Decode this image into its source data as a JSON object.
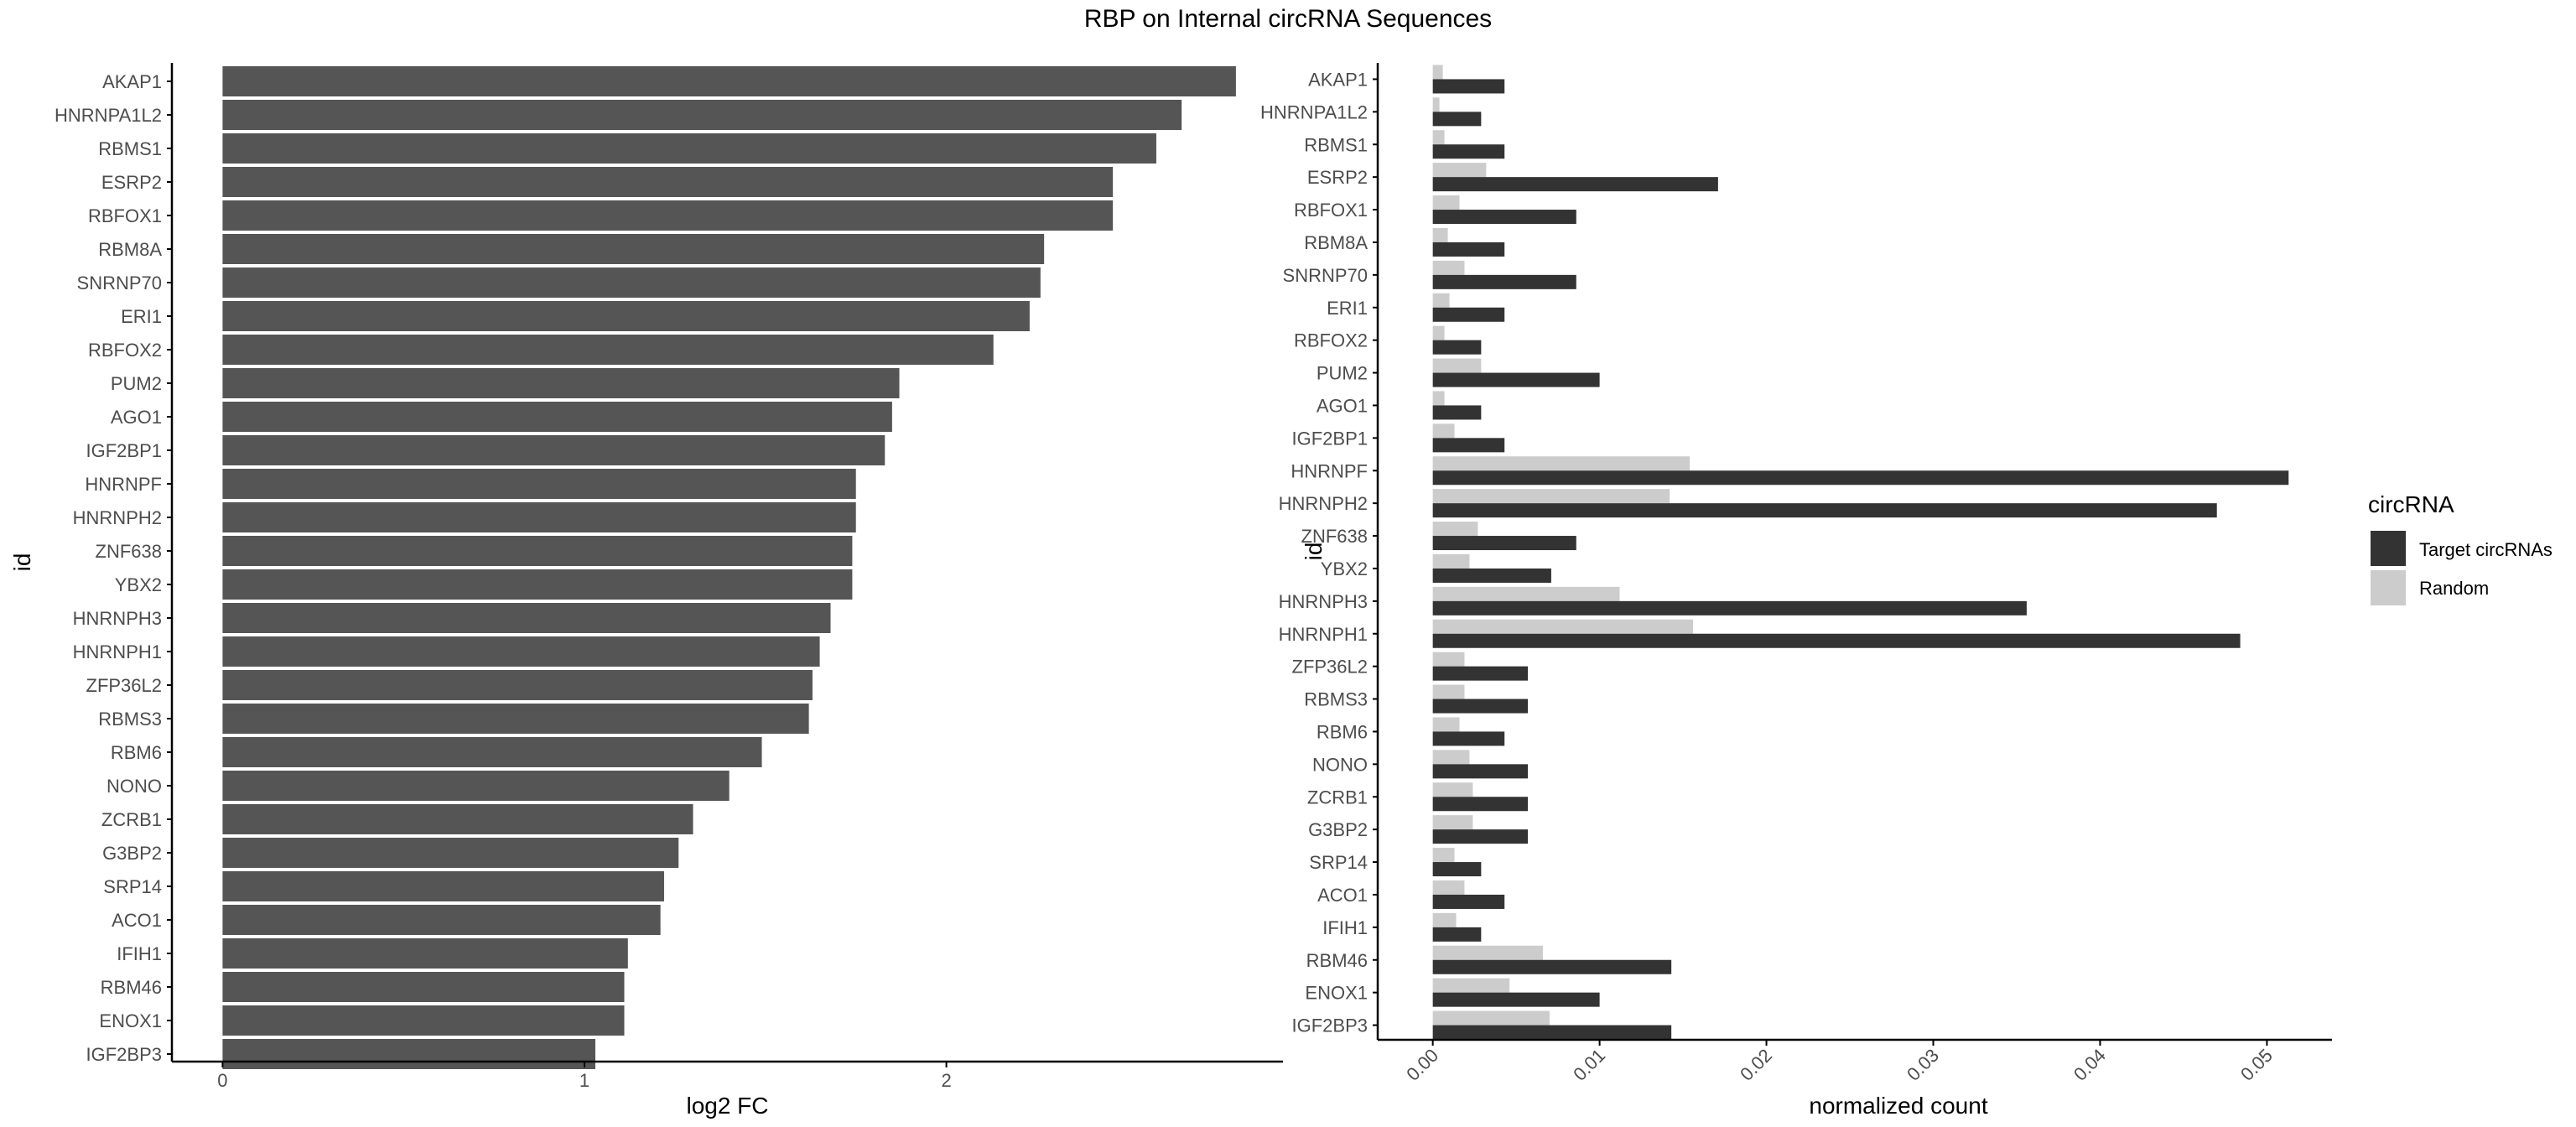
{
  "title": "RBP on Internal circRNA Sequences",
  "colors": {
    "target": "#333333",
    "random": "#cccccc",
    "bar": "#555555",
    "axis": "#000000"
  },
  "chart_data": [
    {
      "type": "bar",
      "orientation": "horizontal",
      "xlabel": "log2 FC",
      "ylabel": "id",
      "xlim": [
        -0.14,
        2.93
      ],
      "xticks": [
        0,
        1,
        2
      ],
      "grid": false,
      "categories": [
        "AKAP1",
        "HNRNPA1L2",
        "RBMS1",
        "ESRP2",
        "RBFOX1",
        "RBM8A",
        "SNRNP70",
        "ERI1",
        "RBFOX2",
        "PUM2",
        "AGO1",
        "IGF2BP1",
        "HNRNPF",
        "HNRNPH2",
        "ZNF638",
        "YBX2",
        "HNRNPH3",
        "HNRNPH1",
        "ZFP36L2",
        "RBMS3",
        "RBM6",
        "NONO",
        "ZCRB1",
        "G3BP2",
        "SRP14",
        "ACO1",
        "IFIH1",
        "RBM46",
        "ENOX1",
        "IGF2BP3"
      ],
      "values": [
        2.8,
        2.65,
        2.58,
        2.46,
        2.46,
        2.27,
        2.26,
        2.23,
        2.13,
        1.87,
        1.85,
        1.83,
        1.75,
        1.75,
        1.74,
        1.74,
        1.68,
        1.65,
        1.63,
        1.62,
        1.49,
        1.4,
        1.3,
        1.26,
        1.22,
        1.21,
        1.12,
        1.11,
        1.11,
        1.03
      ]
    },
    {
      "type": "bar",
      "orientation": "horizontal",
      "grouped": true,
      "xlabel": "normalized count",
      "ylabel": "id",
      "xlim": [
        -0.0033,
        0.0539
      ],
      "xticks": [
        "0.00",
        "0.01",
        "0.02",
        "0.03",
        "0.04",
        "0.05"
      ],
      "grid": false,
      "legend": {
        "title": "circRNA",
        "position": "right"
      },
      "categories": [
        "AKAP1",
        "HNRNPA1L2",
        "RBMS1",
        "ESRP2",
        "RBFOX1",
        "RBM8A",
        "SNRNP70",
        "ERI1",
        "RBFOX2",
        "PUM2",
        "AGO1",
        "IGF2BP1",
        "HNRNPF",
        "HNRNPH2",
        "ZNF638",
        "YBX2",
        "HNRNPH3",
        "HNRNPH1",
        "ZFP36L2",
        "RBMS3",
        "RBM6",
        "NONO",
        "ZCRB1",
        "G3BP2",
        "SRP14",
        "ACO1",
        "IFIH1",
        "RBM46",
        "ENOX1",
        "IGF2BP3"
      ],
      "series": [
        {
          "name": "Target circRNAs",
          "values": [
            0.0043,
            0.0029,
            0.0043,
            0.0171,
            0.0086,
            0.0043,
            0.0086,
            0.0043,
            0.0029,
            0.01,
            0.0029,
            0.0043,
            0.0513,
            0.047,
            0.0086,
            0.0071,
            0.0356,
            0.0484,
            0.0057,
            0.0057,
            0.0043,
            0.0057,
            0.0057,
            0.0057,
            0.0029,
            0.0043,
            0.0029,
            0.0143,
            0.01,
            0.0143
          ]
        },
        {
          "name": "Random",
          "values": [
            0.0006,
            0.0004,
            0.0007,
            0.0032,
            0.0016,
            0.0009,
            0.0019,
            0.001,
            0.0007,
            0.0029,
            0.0007,
            0.0013,
            0.0154,
            0.0142,
            0.0027,
            0.0022,
            0.0112,
            0.0156,
            0.0019,
            0.0019,
            0.0016,
            0.0022,
            0.0024,
            0.0024,
            0.0013,
            0.0019,
            0.0014,
            0.0066,
            0.0046,
            0.007
          ]
        }
      ]
    }
  ]
}
